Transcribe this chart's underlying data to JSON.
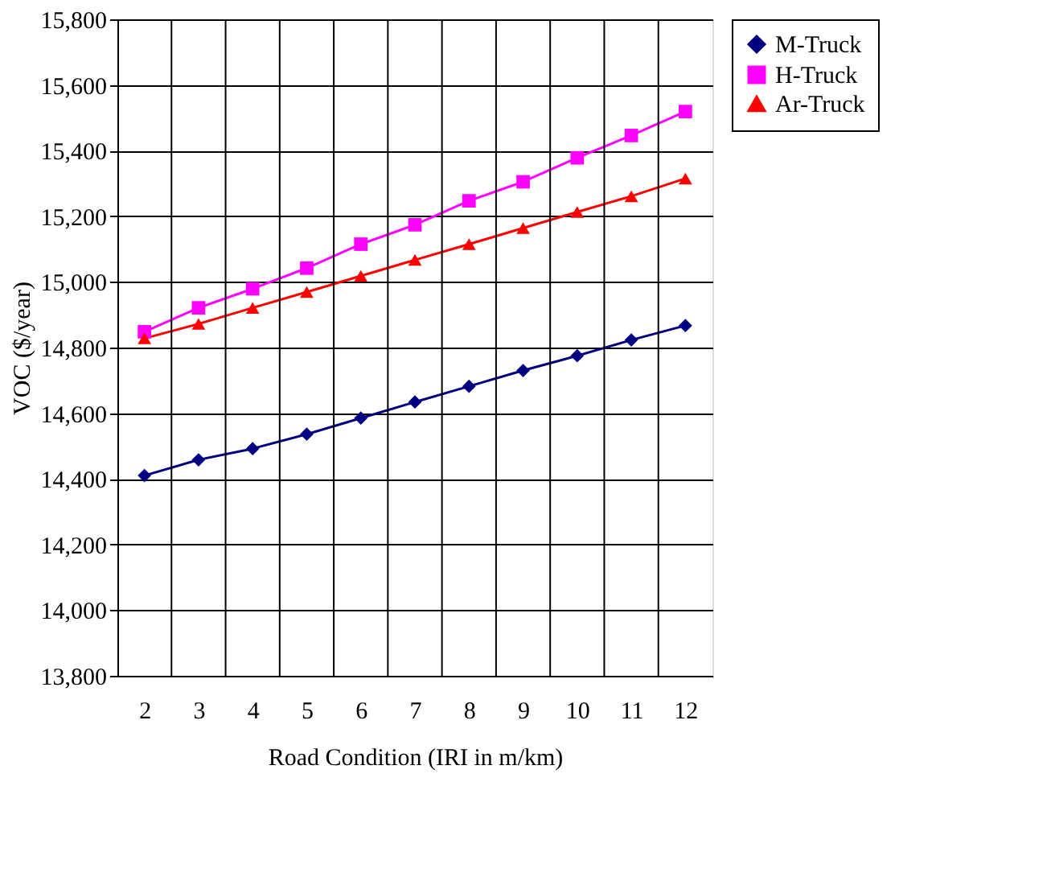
{
  "chart_data": {
    "type": "line",
    "xlabel": "Road Condition (IRI in m/km)",
    "ylabel": "VOC ($/year)",
    "categories": [
      "2",
      "3",
      "4",
      "5",
      "6",
      "7",
      "8",
      "9",
      "10",
      "11",
      "12"
    ],
    "series": [
      {
        "name": "M-Truck",
        "color": "#000080",
        "marker": "diamond",
        "values": [
          14410,
          14458,
          14492,
          14536,
          14585,
          14634,
          14682,
          14730,
          14775,
          14823,
          14867
        ]
      },
      {
        "name": "H-Truck",
        "color": "#ff00ff",
        "marker": "square",
        "values": [
          14848,
          14921,
          14979,
          15042,
          15115,
          15174,
          15247,
          15305,
          15378,
          15446,
          15519
        ]
      },
      {
        "name": "Ar-Truck",
        "color": "#ff0000",
        "marker": "triangle",
        "values": [
          14828,
          14872,
          14921,
          14969,
          15018,
          15067,
          15115,
          15164,
          15213,
          15261,
          15315
        ]
      }
    ],
    "ylim": [
      13800,
      15800
    ],
    "yticks": [
      {
        "value": 13800,
        "label": "13,800"
      },
      {
        "value": 14000,
        "label": "14,000"
      },
      {
        "value": 14200,
        "label": "14,200"
      },
      {
        "value": 14400,
        "label": "14,400"
      },
      {
        "value": 14600,
        "label": "14,600"
      },
      {
        "value": 14800,
        "label": "14,800"
      },
      {
        "value": 15000,
        "label": "15,000"
      },
      {
        "value": 15200,
        "label": "15,200"
      },
      {
        "value": 15400,
        "label": "15,400"
      },
      {
        "value": 15600,
        "label": "15,600"
      },
      {
        "value": 15800,
        "label": "15,800"
      }
    ],
    "grid": true,
    "legend": "right",
    "line_style": "solid"
  }
}
